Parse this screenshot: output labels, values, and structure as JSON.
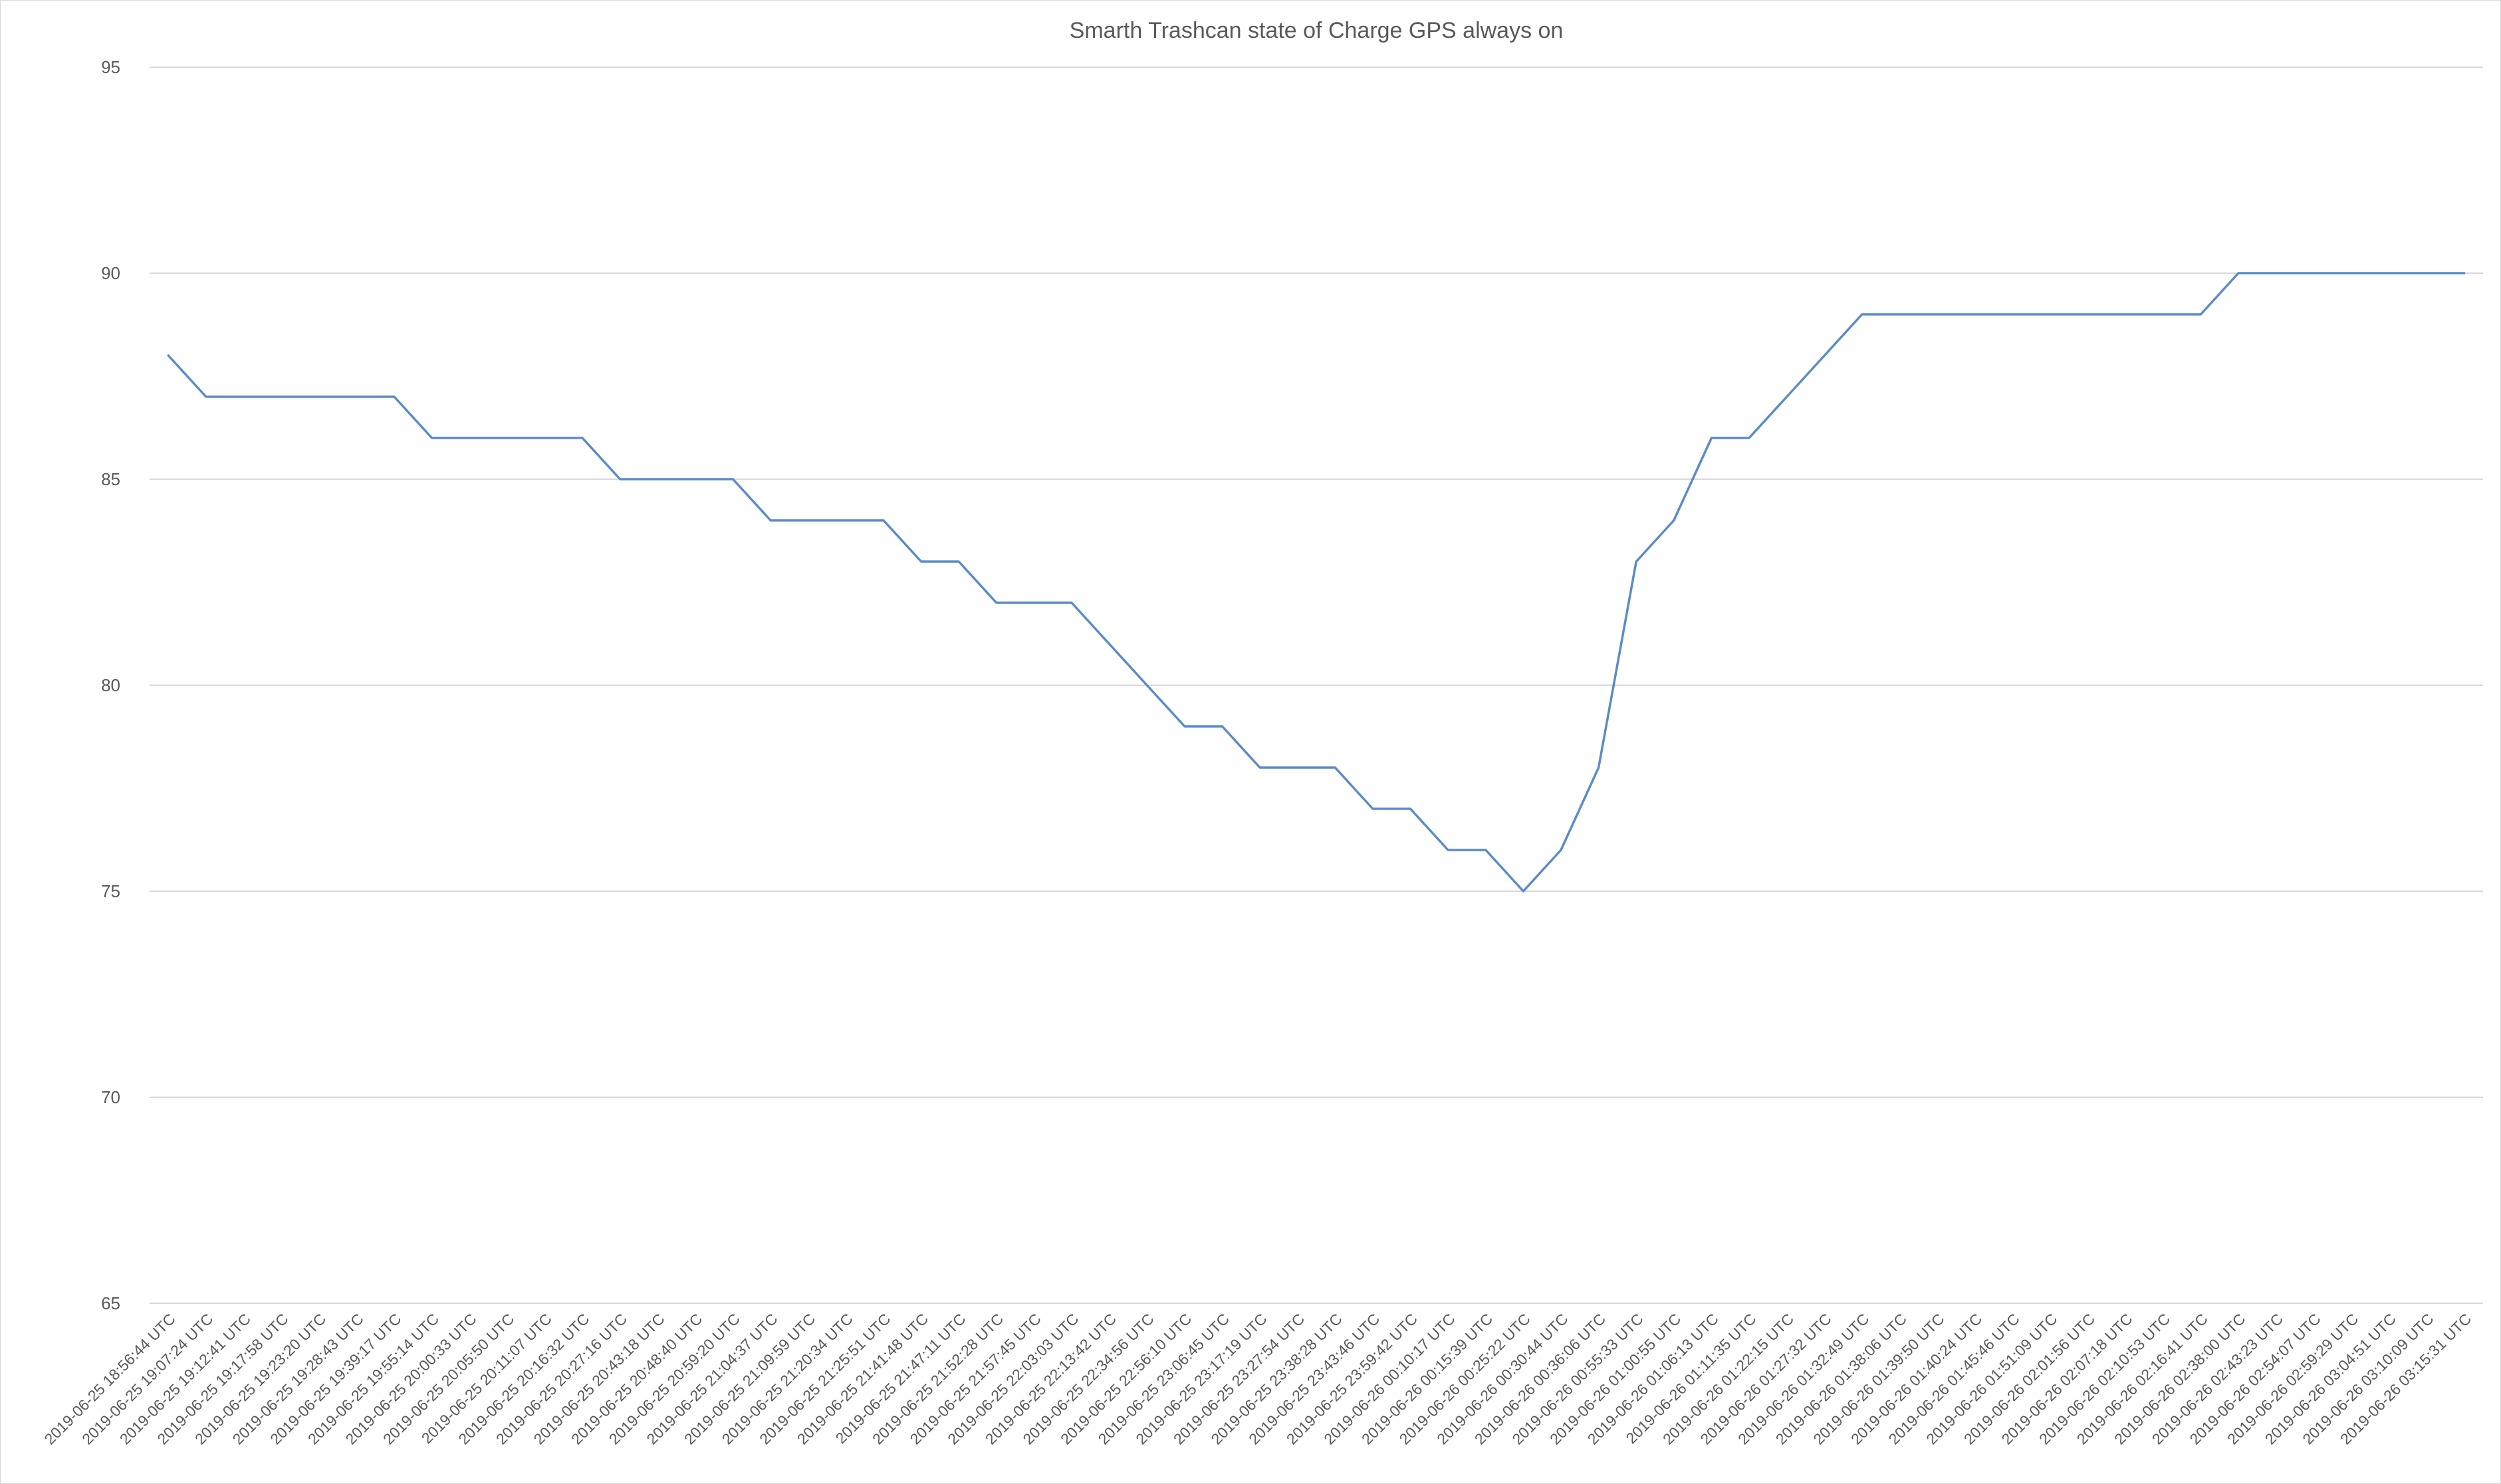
{
  "chart_data": {
    "type": "line",
    "title": "Smarth Trashcan state of Charge GPS always on",
    "xlabel": "",
    "ylabel": "",
    "ylim": [
      65,
      95
    ],
    "yticks": [
      65,
      70,
      75,
      80,
      85,
      90,
      95
    ],
    "grid": true,
    "legend": "none",
    "line_color": "#5b8bc9",
    "categories": [
      "2019-06-25 18:56:44 UTC",
      "2019-06-25 19:07:24 UTC",
      "2019-06-25 19:12:41 UTC",
      "2019-06-25 19:17:58 UTC",
      "2019-06-25 19:23:20 UTC",
      "2019-06-25 19:28:43 UTC",
      "2019-06-25 19:39:17 UTC",
      "2019-06-25 19:55:14 UTC",
      "2019-06-25 20:00:33 UTC",
      "2019-06-25 20:05:50 UTC",
      "2019-06-25 20:11:07 UTC",
      "2019-06-25 20:16:32 UTC",
      "2019-06-25 20:27:16 UTC",
      "2019-06-25 20:43:18 UTC",
      "2019-06-25 20:48:40 UTC",
      "2019-06-25 20:59:20 UTC",
      "2019-06-25 21:04:37 UTC",
      "2019-06-25 21:09:59 UTC",
      "2019-06-25 21:20:34 UTC",
      "2019-06-25 21:25:51 UTC",
      "2019-06-25 21:41:48 UTC",
      "2019-06-25 21:47:11 UTC",
      "2019-06-25 21:52:28 UTC",
      "2019-06-25 21:57:45 UTC",
      "2019-06-25 22:03:03 UTC",
      "2019-06-25 22:13:42 UTC",
      "2019-06-25 22:34:56 UTC",
      "2019-06-25 22:56:10 UTC",
      "2019-06-25 23:06:45 UTC",
      "2019-06-25 23:17:19 UTC",
      "2019-06-25 23:27:54 UTC",
      "2019-06-25 23:38:28 UTC",
      "2019-06-25 23:43:46 UTC",
      "2019-06-25 23:59:42 UTC",
      "2019-06-26 00:10:17 UTC",
      "2019-06-26 00:15:39 UTC",
      "2019-06-26 00:25:22 UTC",
      "2019-06-26 00:30:44 UTC",
      "2019-06-26 00:36:06 UTC",
      "2019-06-26 00:55:33 UTC",
      "2019-06-26 01:00:55 UTC",
      "2019-06-26 01:06:13 UTC",
      "2019-06-26 01:11:35 UTC",
      "2019-06-26 01:22:15 UTC",
      "2019-06-26 01:27:32 UTC",
      "2019-06-26 01:32:49 UTC",
      "2019-06-26 01:38:06 UTC",
      "2019-06-26 01:39:50 UTC",
      "2019-06-26 01:40:24 UTC",
      "2019-06-26 01:45:46 UTC",
      "2019-06-26 01:51:09 UTC",
      "2019-06-26 02:01:56 UTC",
      "2019-06-26 02:07:18 UTC",
      "2019-06-26 02:10:53 UTC",
      "2019-06-26 02:16:41 UTC",
      "2019-06-26 02:38:00 UTC",
      "2019-06-26 02:43:23 UTC",
      "2019-06-26 02:54:07 UTC",
      "2019-06-26 02:59:29 UTC",
      "2019-06-26 03:04:51 UTC",
      "2019-06-26 03:10:09 UTC",
      "2019-06-26 03:15:31 UTC"
    ],
    "series": [
      {
        "values": [
          88,
          87,
          87,
          87,
          87,
          87,
          87,
          86,
          86,
          86,
          86,
          86,
          85,
          85,
          85,
          85,
          84,
          84,
          84,
          84,
          83,
          83,
          82,
          82,
          82,
          81,
          80,
          79,
          79,
          78,
          78,
          78,
          77,
          77,
          76,
          76,
          75,
          76,
          78,
          83,
          84,
          86,
          86,
          87,
          88,
          89,
          89,
          89,
          89,
          89,
          89,
          89,
          89,
          89,
          89,
          90,
          90,
          90,
          90,
          90,
          90,
          90
        ]
      }
    ]
  }
}
